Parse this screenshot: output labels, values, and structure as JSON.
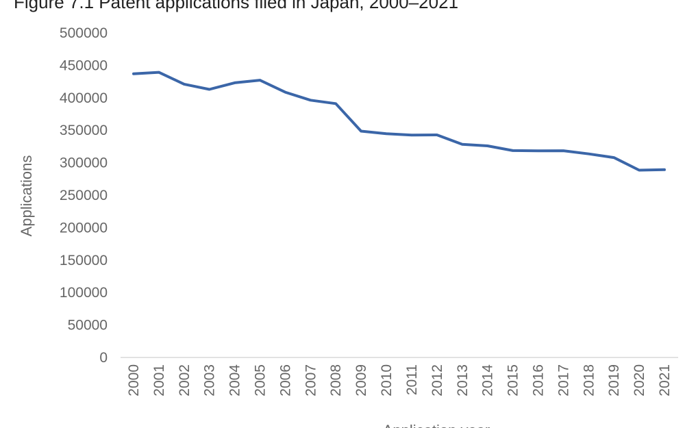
{
  "chart_data": {
    "type": "line",
    "title": "Figure 7.1 Patent applications filed in Japan, 2000–2021",
    "xlabel": "Application year",
    "ylabel": "Applications",
    "ylim": [
      0,
      500000
    ],
    "yticks": [
      "0",
      "50000",
      "100000",
      "150000",
      "200000",
      "250000",
      "300000",
      "350000",
      "400000",
      "450000",
      "500000"
    ],
    "grid": false,
    "legend": "none",
    "x": [
      "2000",
      "2001",
      "2002",
      "2003",
      "2004",
      "2005",
      "2006",
      "2007",
      "2008",
      "2009",
      "2010",
      "2011",
      "2012",
      "2013",
      "2014",
      "2015",
      "2016",
      "2017",
      "2018",
      "2019",
      "2020",
      "2021"
    ],
    "series": [
      {
        "color": "#3b66a8",
        "values": [
          436900,
          439200,
          421000,
          413000,
          423100,
          427100,
          408700,
          396300,
          391000,
          348600,
          344600,
          342600,
          342800,
          328400,
          325900,
          318700,
          318400,
          318500,
          313600,
          307900,
          288500,
          289200
        ]
      }
    ]
  }
}
